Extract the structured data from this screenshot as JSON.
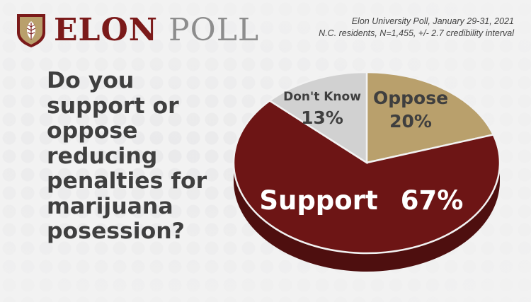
{
  "brand": {
    "name_part1": "ELON",
    "name_part2": "POLL"
  },
  "source": {
    "line1": "Elon University Poll, January 29-31, 2021",
    "line2": "N.C. residents, N=1,455, +/- 2.7 credibility interval"
  },
  "question": "Do you support or oppose reducing penalties for marijuana posession?",
  "chart_data": {
    "type": "pie",
    "slices": [
      {
        "label": "Oppose",
        "value": 20,
        "display": "20%",
        "color": "#b9a06c"
      },
      {
        "label": "Support",
        "value": 67,
        "display": "67%",
        "color": "#6d1515"
      },
      {
        "label": "Don't Know",
        "value": 13,
        "display": "13%",
        "color": "#d1d1d1"
      }
    ]
  },
  "colors": {
    "brand_maroon": "#7b1a1a",
    "brand_gray": "#8d8d8d",
    "text": "#3f3f3f"
  }
}
